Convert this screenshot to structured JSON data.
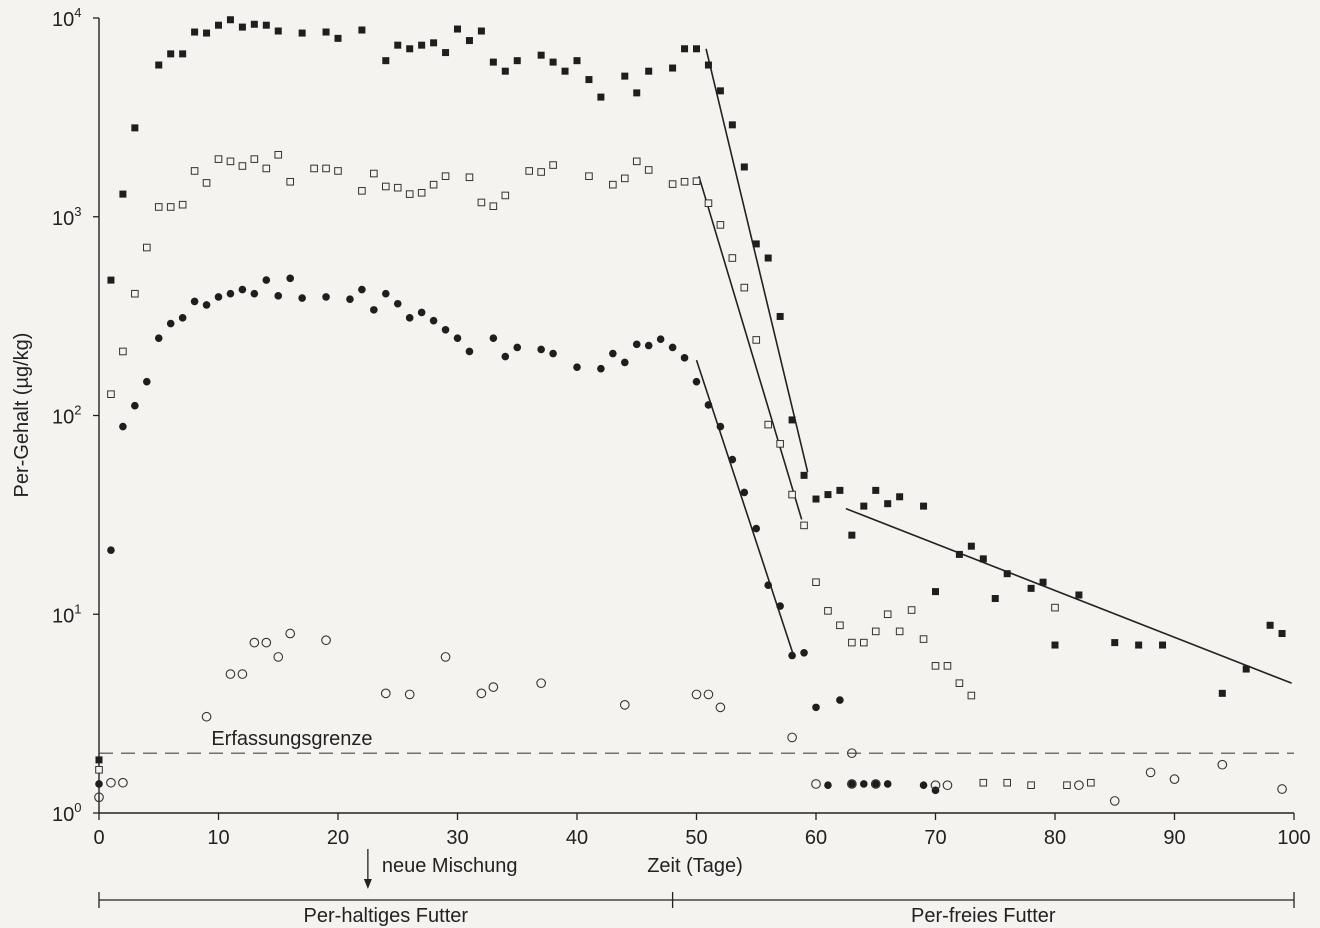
{
  "chart_data": {
    "type": "scatter",
    "title": "",
    "xlabel": "Zeit (Tage)",
    "ylabel": "Per-Gehalt (µg/kg)",
    "xlim": [
      0,
      100
    ],
    "ylim": [
      1,
      10000
    ],
    "yscale": "log",
    "x_ticks": [
      0,
      10,
      20,
      30,
      40,
      50,
      60,
      70,
      80,
      90,
      100
    ],
    "y_ticks": [
      {
        "value": 1,
        "base": "10",
        "exp": "0"
      },
      {
        "value": 10,
        "base": "10",
        "exp": "1"
      },
      {
        "value": 100,
        "base": "10",
        "exp": "2"
      },
      {
        "value": 1000,
        "base": "10",
        "exp": "3"
      },
      {
        "value": 10000,
        "base": "10",
        "exp": "4"
      }
    ],
    "grid": false,
    "detection_limit": {
      "label": "Erfassungsgrenze",
      "value": 2.0
    },
    "annotations": {
      "arrow_label": "neue Mischung",
      "arrow_x": 22.5,
      "period_split_x": 48,
      "period_left_label": "Per-haltiges Futter",
      "period_right_label": "Per-freies Futter"
    },
    "series": [
      {
        "marker": "filled-square",
        "points": [
          [
            0,
            1.85
          ],
          [
            1,
            480
          ],
          [
            2,
            1300
          ],
          [
            3,
            2800
          ],
          [
            5,
            5800
          ],
          [
            6,
            6600
          ],
          [
            7,
            6600
          ],
          [
            8,
            8500
          ],
          [
            9,
            8400
          ],
          [
            10,
            9200
          ],
          [
            11,
            9800
          ],
          [
            12,
            9000
          ],
          [
            13,
            9300
          ],
          [
            14,
            9200
          ],
          [
            15,
            8600
          ],
          [
            17,
            8400
          ],
          [
            19,
            8500
          ],
          [
            20,
            7900
          ],
          [
            22,
            8700
          ],
          [
            24,
            6100
          ],
          [
            25,
            7300
          ],
          [
            26,
            7000
          ],
          [
            27,
            7300
          ],
          [
            28,
            7500
          ],
          [
            29,
            6700
          ],
          [
            30,
            8800
          ],
          [
            31,
            7700
          ],
          [
            32,
            8600
          ],
          [
            33,
            6000
          ],
          [
            34,
            5400
          ],
          [
            35,
            6100
          ],
          [
            37,
            6500
          ],
          [
            38,
            6000
          ],
          [
            39,
            5400
          ],
          [
            40,
            6100
          ],
          [
            41,
            4900
          ],
          [
            42,
            4000
          ],
          [
            44,
            5100
          ],
          [
            45,
            4200
          ],
          [
            46,
            5400
          ],
          [
            48,
            5600
          ],
          [
            49,
            7000
          ],
          [
            50,
            7000
          ],
          [
            51,
            5800
          ],
          [
            52,
            4300
          ],
          [
            53,
            2900
          ],
          [
            54,
            1780
          ],
          [
            55,
            730
          ],
          [
            56,
            620
          ],
          [
            57,
            315
          ],
          [
            58,
            95
          ],
          [
            59,
            50
          ],
          [
            60,
            38
          ],
          [
            61,
            40
          ],
          [
            62,
            42
          ],
          [
            63,
            25
          ],
          [
            64,
            35
          ],
          [
            65,
            42
          ],
          [
            66,
            36
          ],
          [
            67,
            39
          ],
          [
            69,
            35
          ],
          [
            70,
            13
          ],
          [
            72,
            20
          ],
          [
            73,
            22
          ],
          [
            74,
            19
          ],
          [
            75,
            12
          ],
          [
            76,
            16
          ],
          [
            78,
            13.5
          ],
          [
            79,
            14.5
          ],
          [
            80,
            7
          ],
          [
            82,
            12.5
          ],
          [
            85,
            7.2
          ],
          [
            87,
            7
          ],
          [
            89,
            7
          ],
          [
            94,
            4
          ],
          [
            96,
            5.3
          ],
          [
            98,
            8.8
          ],
          [
            99,
            8
          ]
        ]
      },
      {
        "marker": "open-square",
        "points": [
          [
            0,
            1.65
          ],
          [
            1,
            128
          ],
          [
            2,
            210
          ],
          [
            3,
            410
          ],
          [
            4,
            700
          ],
          [
            5,
            1120
          ],
          [
            6,
            1120
          ],
          [
            7,
            1150
          ],
          [
            8,
            1700
          ],
          [
            9,
            1480
          ],
          [
            10,
            1950
          ],
          [
            11,
            1900
          ],
          [
            12,
            1800
          ],
          [
            13,
            1950
          ],
          [
            14,
            1750
          ],
          [
            15,
            2050
          ],
          [
            16,
            1500
          ],
          [
            18,
            1750
          ],
          [
            19,
            1750
          ],
          [
            20,
            1700
          ],
          [
            22,
            1350
          ],
          [
            23,
            1650
          ],
          [
            24,
            1420
          ],
          [
            25,
            1400
          ],
          [
            26,
            1300
          ],
          [
            27,
            1320
          ],
          [
            28,
            1450
          ],
          [
            29,
            1600
          ],
          [
            31,
            1580
          ],
          [
            32,
            1180
          ],
          [
            33,
            1130
          ],
          [
            34,
            1280
          ],
          [
            36,
            1700
          ],
          [
            37,
            1680
          ],
          [
            38,
            1820
          ],
          [
            41,
            1600
          ],
          [
            43,
            1450
          ],
          [
            44,
            1560
          ],
          [
            45,
            1900
          ],
          [
            46,
            1720
          ],
          [
            48,
            1460
          ],
          [
            49,
            1500
          ],
          [
            50,
            1510
          ],
          [
            51,
            1170
          ],
          [
            52,
            910
          ],
          [
            53,
            620
          ],
          [
            54,
            440
          ],
          [
            55,
            240
          ],
          [
            56,
            90
          ],
          [
            57,
            72
          ],
          [
            58,
            40
          ],
          [
            59,
            28
          ],
          [
            60,
            14.5
          ],
          [
            61,
            10.4
          ],
          [
            62,
            8.8
          ],
          [
            63,
            7.2
          ],
          [
            64,
            7.2
          ],
          [
            65,
            8.2
          ],
          [
            66,
            10
          ],
          [
            67,
            8.2
          ],
          [
            68,
            10.5
          ],
          [
            69,
            7.5
          ],
          [
            70,
            5.5
          ],
          [
            71,
            5.5
          ],
          [
            72,
            4.5
          ],
          [
            73,
            3.9
          ],
          [
            74,
            1.42
          ],
          [
            76,
            1.42
          ],
          [
            78,
            1.38
          ],
          [
            80,
            10.8
          ],
          [
            81,
            1.38
          ],
          [
            83,
            1.42
          ]
        ]
      },
      {
        "marker": "filled-circle",
        "points": [
          [
            0,
            1.4
          ],
          [
            1,
            21
          ],
          [
            2,
            88
          ],
          [
            3,
            112
          ],
          [
            4,
            148
          ],
          [
            5,
            245
          ],
          [
            6,
            290
          ],
          [
            7,
            310
          ],
          [
            8,
            375
          ],
          [
            9,
            360
          ],
          [
            10,
            395
          ],
          [
            11,
            410
          ],
          [
            12,
            430
          ],
          [
            13,
            410
          ],
          [
            14,
            480
          ],
          [
            15,
            400
          ],
          [
            16,
            490
          ],
          [
            17,
            390
          ],
          [
            19,
            395
          ],
          [
            21,
            385
          ],
          [
            22,
            430
          ],
          [
            23,
            340
          ],
          [
            24,
            410
          ],
          [
            25,
            365
          ],
          [
            26,
            310
          ],
          [
            27,
            330
          ],
          [
            28,
            300
          ],
          [
            29,
            270
          ],
          [
            30,
            245
          ],
          [
            31,
            210
          ],
          [
            33,
            245
          ],
          [
            34,
            198
          ],
          [
            35,
            220
          ],
          [
            37,
            215
          ],
          [
            38,
            205
          ],
          [
            40,
            175
          ],
          [
            42,
            172
          ],
          [
            43,
            205
          ],
          [
            44,
            185
          ],
          [
            45,
            228
          ],
          [
            46,
            225
          ],
          [
            47,
            242
          ],
          [
            48,
            220
          ],
          [
            49,
            195
          ],
          [
            50,
            148
          ],
          [
            51,
            113
          ],
          [
            52,
            88
          ],
          [
            53,
            60
          ],
          [
            54,
            41
          ],
          [
            55,
            27
          ],
          [
            56,
            14
          ],
          [
            57,
            11
          ],
          [
            58,
            6.2
          ],
          [
            59,
            6.4
          ],
          [
            60,
            3.4
          ],
          [
            61,
            1.38
          ],
          [
            62,
            3.7
          ],
          [
            63,
            1.4
          ],
          [
            64,
            1.4
          ],
          [
            65,
            1.4
          ],
          [
            66,
            1.4
          ],
          [
            69,
            1.38
          ],
          [
            70,
            1.3
          ]
        ]
      },
      {
        "marker": "open-circle",
        "points": [
          [
            0,
            1.2
          ],
          [
            1,
            1.42
          ],
          [
            2,
            1.42
          ],
          [
            9,
            3.05
          ],
          [
            11,
            5
          ],
          [
            12,
            5
          ],
          [
            13,
            7.2
          ],
          [
            14,
            7.2
          ],
          [
            15,
            6.1
          ],
          [
            16,
            8
          ],
          [
            19,
            7.4
          ],
          [
            24,
            4
          ],
          [
            26,
            3.95
          ],
          [
            29,
            6.1
          ],
          [
            32,
            4
          ],
          [
            33,
            4.3
          ],
          [
            37,
            4.5
          ],
          [
            44,
            3.5
          ],
          [
            50,
            3.95
          ],
          [
            51,
            3.95
          ],
          [
            52,
            3.4
          ],
          [
            58,
            2.4
          ],
          [
            60,
            1.4
          ],
          [
            63,
            1.4
          ],
          [
            63,
            2
          ],
          [
            65,
            1.4
          ],
          [
            70,
            1.38
          ],
          [
            71,
            1.38
          ],
          [
            82,
            1.38
          ],
          [
            85,
            1.15
          ],
          [
            88,
            1.6
          ],
          [
            90,
            1.48
          ],
          [
            94,
            1.75
          ],
          [
            99,
            1.32
          ]
        ]
      }
    ],
    "fit_lines": [
      {
        "from": [
          50.8,
          7000
        ],
        "to": [
          59.3,
          52
        ]
      },
      {
        "from": [
          50.2,
          1600
        ],
        "to": [
          58.8,
          30
        ]
      },
      {
        "from": [
          50,
          190
        ],
        "to": [
          58.2,
          6
        ]
      },
      {
        "from": [
          62.5,
          34
        ],
        "to": [
          99.8,
          4.5
        ]
      }
    ]
  }
}
